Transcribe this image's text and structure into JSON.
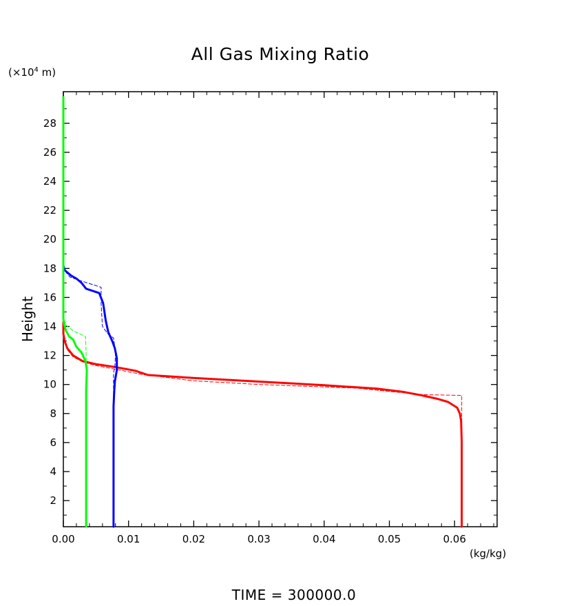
{
  "chart_data": {
    "type": "line",
    "title": "All Gas Mixing Ratio",
    "xlabel": "(kg/kg)",
    "ylabel": "Height",
    "y_unit": "(×10⁴ m)",
    "y_unit_parts": {
      "prefix": "(×10",
      "exp": "4",
      "suffix": " m)"
    },
    "xlim": [
      0,
      0.067
    ],
    "ylim": [
      0.2,
      30
    ],
    "x_ticks": [
      "0.00",
      "0.01",
      "0.02",
      "0.03",
      "0.04",
      "0.05",
      "0.06"
    ],
    "x_tick_values": [
      0,
      0.01,
      0.02,
      0.03,
      0.04,
      0.05,
      0.06
    ],
    "y_ticks": [
      "2",
      "4",
      "6",
      "8",
      "10",
      "12",
      "14",
      "16",
      "18",
      "20",
      "22",
      "24",
      "26",
      "28"
    ],
    "y_tick_values": [
      2,
      4,
      6,
      8,
      10,
      12,
      14,
      16,
      18,
      20,
      22,
      24,
      26,
      28
    ],
    "grid": false,
    "series": [
      {
        "color": "#ff0000",
        "style": "solid",
        "points": [
          [
            0.0611,
            0.2
          ],
          [
            0.0611,
            6.0
          ],
          [
            0.061,
            7.5
          ],
          [
            0.0608,
            8.0
          ],
          [
            0.0604,
            8.4
          ],
          [
            0.059,
            8.8
          ],
          [
            0.0575,
            9.0
          ],
          [
            0.055,
            9.25
          ],
          [
            0.052,
            9.5
          ],
          [
            0.048,
            9.72
          ],
          [
            0.04,
            9.95
          ],
          [
            0.03,
            10.2
          ],
          [
            0.02,
            10.45
          ],
          [
            0.013,
            10.65
          ],
          [
            0.011,
            10.95
          ],
          [
            0.008,
            11.2
          ],
          [
            0.005,
            11.4
          ],
          [
            0.003,
            11.6
          ],
          [
            0.0015,
            12.0
          ],
          [
            0.0006,
            12.5
          ],
          [
            0.0002,
            13.0
          ],
          [
            0.0,
            13.5
          ],
          [
            0.0,
            14.3
          ]
        ]
      },
      {
        "color": "#ff0000",
        "style": "dashed",
        "points": [
          [
            0.0611,
            0.2
          ],
          [
            0.0611,
            9.25
          ],
          [
            0.055,
            9.3
          ],
          [
            0.045,
            9.75
          ],
          [
            0.03,
            10.0
          ],
          [
            0.02,
            10.25
          ],
          [
            0.012,
            10.7
          ],
          [
            0.008,
            11.05
          ],
          [
            0.005,
            11.3
          ],
          [
            0.003,
            11.55
          ],
          [
            0.0015,
            11.9
          ],
          [
            0.0006,
            12.4
          ],
          [
            0.0002,
            13.0
          ],
          [
            0.0,
            13.8
          ]
        ]
      },
      {
        "color": "#0000ff",
        "style": "solid",
        "points": [
          [
            0.0077,
            0.2
          ],
          [
            0.0077,
            8.5
          ],
          [
            0.0078,
            9.5
          ],
          [
            0.0079,
            10.2
          ],
          [
            0.0082,
            11.0
          ],
          [
            0.0082,
            11.8
          ],
          [
            0.0079,
            12.5
          ],
          [
            0.0075,
            13.0
          ],
          [
            0.0069,
            13.6
          ],
          [
            0.0065,
            14.4
          ],
          [
            0.0061,
            15.6
          ],
          [
            0.0055,
            16.3
          ],
          [
            0.0035,
            16.6
          ],
          [
            0.0028,
            17.0
          ],
          [
            0.002,
            17.3
          ],
          [
            0.0012,
            17.5
          ],
          [
            0.0004,
            17.8
          ],
          [
            0.0,
            18.0
          ],
          [
            0.0,
            18.6
          ]
        ]
      },
      {
        "color": "#0000ff",
        "style": "dashed",
        "points": [
          [
            0.0077,
            0.2
          ],
          [
            0.0077,
            10.8
          ],
          [
            0.0079,
            11.2
          ],
          [
            0.008,
            12.2
          ],
          [
            0.0077,
            13.2
          ],
          [
            0.0068,
            13.5
          ],
          [
            0.006,
            14.0
          ],
          [
            0.0058,
            15.5
          ],
          [
            0.0058,
            16.7
          ],
          [
            0.003,
            17.1
          ],
          [
            0.001,
            17.4
          ],
          [
            0.0003,
            17.8
          ],
          [
            0.0,
            18.5
          ]
        ]
      },
      {
        "color": "#00ff00",
        "style": "solid",
        "points": [
          [
            0.0035,
            0.2
          ],
          [
            0.0035,
            8.0
          ],
          [
            0.0035,
            9.5
          ],
          [
            0.0036,
            11.0
          ],
          [
            0.0034,
            11.6
          ],
          [
            0.0028,
            12.2
          ],
          [
            0.002,
            12.6
          ],
          [
            0.0015,
            13.1
          ],
          [
            0.0009,
            13.3
          ],
          [
            0.0004,
            13.7
          ],
          [
            0.0001,
            14.2
          ],
          [
            0.0,
            14.6
          ],
          [
            0.0,
            29.8
          ]
        ]
      },
      {
        "color": "#00ff00",
        "style": "dashed",
        "points": [
          [
            0.0035,
            0.2
          ],
          [
            0.0035,
            8.8
          ],
          [
            0.0035,
            12.2
          ],
          [
            0.0034,
            13.3
          ],
          [
            0.0015,
            13.7
          ],
          [
            0.0004,
            14.1
          ],
          [
            0.0,
            14.6
          ],
          [
            0.0,
            15.2
          ]
        ]
      }
    ]
  },
  "footer": {
    "timestamp": "TIME = 300000.0"
  }
}
